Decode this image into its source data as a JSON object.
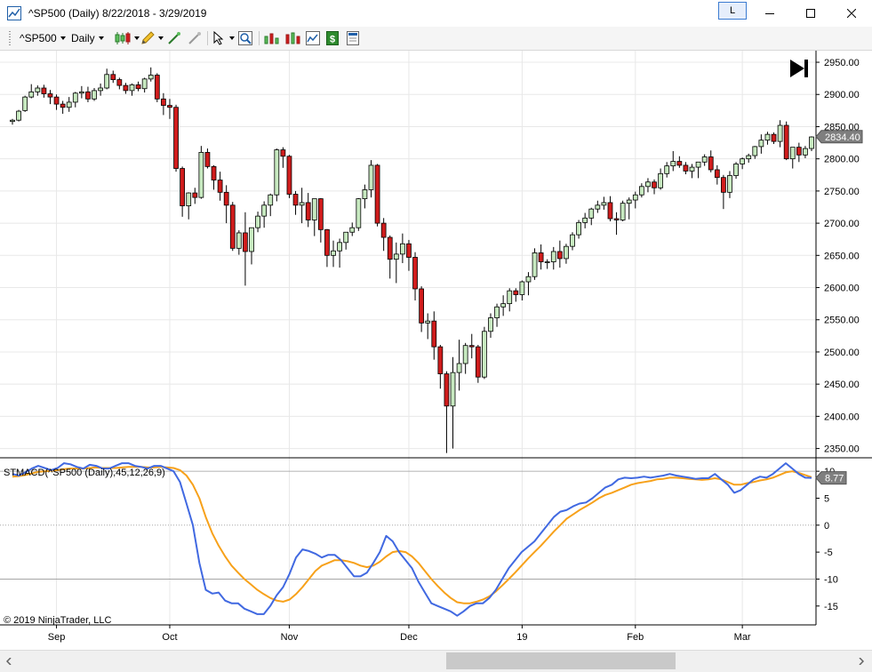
{
  "window": {
    "title": "^SP500 (Daily)  8/22/2018 - 3/29/2019",
    "link_label": "L"
  },
  "toolbar": {
    "instrument": "^SP500",
    "interval": "Daily"
  },
  "colors": {
    "candle_up": "#c7e9c0",
    "candle_down": "#d01c1c",
    "macd_line": "#4169e1",
    "signal_line": "#f7a11a",
    "grid": "#e8e8e8"
  },
  "chart_data": {
    "type": "candlestick",
    "price_axis": {
      "ticks": [
        "2950.00",
        "2900.00",
        "2850.00",
        "2800.00",
        "2750.00",
        "2700.00",
        "2650.00",
        "2600.00",
        "2550.00",
        "2500.00",
        "2450.00",
        "2400.00",
        "2350.00"
      ],
      "ylim": [
        2337,
        2968
      ],
      "last_price": "2834.40"
    },
    "time_axis": {
      "labels": [
        "Sep",
        "Oct",
        "Nov",
        "Dec",
        "19",
        "Feb",
        "Mar"
      ]
    },
    "candles": [
      [
        2858,
        2862,
        2853,
        2860
      ],
      [
        2860,
        2876,
        2858,
        2874
      ],
      [
        2875,
        2898,
        2873,
        2896
      ],
      [
        2896,
        2916,
        2894,
        2904
      ],
      [
        2904,
        2914,
        2898,
        2910
      ],
      [
        2910,
        2915,
        2895,
        2901
      ],
      [
        2901,
        2907,
        2885,
        2896
      ],
      [
        2896,
        2900,
        2876,
        2885
      ],
      [
        2885,
        2890,
        2870,
        2880
      ],
      [
        2880,
        2896,
        2873,
        2888
      ],
      [
        2888,
        2904,
        2880,
        2902
      ],
      [
        2902,
        2913,
        2894,
        2904
      ],
      [
        2904,
        2912,
        2888,
        2893
      ],
      [
        2893,
        2910,
        2890,
        2906
      ],
      [
        2906,
        2917,
        2898,
        2910
      ],
      [
        2910,
        2940,
        2908,
        2931
      ],
      [
        2931,
        2937,
        2918,
        2923
      ],
      [
        2923,
        2926,
        2908,
        2914
      ],
      [
        2914,
        2918,
        2901,
        2906
      ],
      [
        2906,
        2917,
        2898,
        2915
      ],
      [
        2915,
        2920,
        2905,
        2909
      ],
      [
        2909,
        2926,
        2903,
        2924
      ],
      [
        2924,
        2942,
        2920,
        2930
      ],
      [
        2930,
        2933,
        2888,
        2893
      ],
      [
        2893,
        2902,
        2868,
        2883
      ],
      [
        2883,
        2893,
        2862,
        2880
      ],
      [
        2880,
        2884,
        2780,
        2785
      ],
      [
        2785,
        2788,
        2710,
        2727
      ],
      [
        2727,
        2748,
        2706,
        2747
      ],
      [
        2747,
        2755,
        2730,
        2740
      ],
      [
        2740,
        2820,
        2738,
        2810
      ],
      [
        2810,
        2816,
        2785,
        2788
      ],
      [
        2788,
        2790,
        2752,
        2767
      ],
      [
        2767,
        2780,
        2735,
        2748
      ],
      [
        2748,
        2759,
        2700,
        2728
      ],
      [
        2728,
        2733,
        2657,
        2661
      ],
      [
        2661,
        2689,
        2651,
        2685
      ],
      [
        2685,
        2717,
        2603,
        2656
      ],
      [
        2656,
        2693,
        2636,
        2693
      ],
      [
        2693,
        2718,
        2686,
        2711
      ],
      [
        2711,
        2734,
        2693,
        2728
      ],
      [
        2728,
        2746,
        2711,
        2744
      ],
      [
        2744,
        2816,
        2734,
        2814
      ],
      [
        2814,
        2818,
        2786,
        2804
      ],
      [
        2804,
        2806,
        2739,
        2745
      ],
      [
        2745,
        2750,
        2713,
        2728
      ],
      [
        2728,
        2755,
        2700,
        2732
      ],
      [
        2732,
        2747,
        2694,
        2705
      ],
      [
        2705,
        2736,
        2680,
        2738
      ],
      [
        2738,
        2739,
        2670,
        2690
      ],
      [
        2690,
        2691,
        2632,
        2650
      ],
      [
        2650,
        2673,
        2632,
        2657
      ],
      [
        2657,
        2676,
        2631,
        2670
      ],
      [
        2670,
        2686,
        2659,
        2686
      ],
      [
        2686,
        2701,
        2680,
        2693
      ],
      [
        2693,
        2739,
        2688,
        2738
      ],
      [
        2738,
        2760,
        2723,
        2752
      ],
      [
        2752,
        2798,
        2740,
        2790
      ],
      [
        2790,
        2792,
        2695,
        2700
      ],
      [
        2700,
        2708,
        2657,
        2678
      ],
      [
        2678,
        2681,
        2614,
        2644
      ],
      [
        2644,
        2670,
        2607,
        2652
      ],
      [
        2652,
        2684,
        2638,
        2668
      ],
      [
        2668,
        2674,
        2626,
        2647
      ],
      [
        2647,
        2655,
        2580,
        2598
      ],
      [
        2598,
        2602,
        2531,
        2545
      ],
      [
        2545,
        2560,
        2520,
        2548
      ],
      [
        2548,
        2563,
        2488,
        2508
      ],
      [
        2508,
        2511,
        2443,
        2466
      ],
      [
        2466,
        2470,
        2343,
        2416
      ],
      [
        2416,
        2492,
        2350,
        2468
      ],
      [
        2468,
        2519,
        2440,
        2482
      ],
      [
        2482,
        2514,
        2466,
        2510
      ],
      [
        2510,
        2528,
        2490,
        2508
      ],
      [
        2508,
        2511,
        2452,
        2461
      ],
      [
        2461,
        2539,
        2458,
        2532
      ],
      [
        2532,
        2560,
        2522,
        2553
      ],
      [
        2553,
        2575,
        2539,
        2570
      ],
      [
        2570,
        2588,
        2556,
        2575
      ],
      [
        2575,
        2599,
        2563,
        2595
      ],
      [
        2595,
        2599,
        2578,
        2589
      ],
      [
        2589,
        2611,
        2580,
        2609
      ],
      [
        2609,
        2624,
        2588,
        2617
      ],
      [
        2617,
        2661,
        2612,
        2654
      ],
      [
        2654,
        2667,
        2628,
        2640
      ],
      [
        2640,
        2644,
        2629,
        2640
      ],
      [
        2640,
        2663,
        2628,
        2656
      ],
      [
        2656,
        2673,
        2631,
        2645
      ],
      [
        2645,
        2668,
        2637,
        2664
      ],
      [
        2664,
        2686,
        2658,
        2682
      ],
      [
        2682,
        2705,
        2676,
        2701
      ],
      [
        2701,
        2716,
        2692,
        2708
      ],
      [
        2708,
        2724,
        2697,
        2722
      ],
      [
        2722,
        2735,
        2716,
        2728
      ],
      [
        2728,
        2741,
        2721,
        2732
      ],
      [
        2732,
        2742,
        2703,
        2707
      ],
      [
        2707,
        2717,
        2682,
        2705
      ],
      [
        2705,
        2735,
        2703,
        2731
      ],
      [
        2731,
        2740,
        2706,
        2736
      ],
      [
        2736,
        2749,
        2723,
        2744
      ],
      [
        2744,
        2762,
        2740,
        2757
      ],
      [
        2757,
        2770,
        2748,
        2764
      ],
      [
        2764,
        2768,
        2745,
        2755
      ],
      [
        2755,
        2785,
        2752,
        2777
      ],
      [
        2777,
        2795,
        2771,
        2789
      ],
      [
        2789,
        2812,
        2781,
        2796
      ],
      [
        2796,
        2804,
        2786,
        2790
      ],
      [
        2790,
        2795,
        2776,
        2781
      ],
      [
        2781,
        2792,
        2770,
        2787
      ],
      [
        2787,
        2794,
        2770,
        2795
      ],
      [
        2795,
        2807,
        2789,
        2803
      ],
      [
        2803,
        2813,
        2779,
        2783
      ],
      [
        2783,
        2790,
        2760,
        2771
      ],
      [
        2771,
        2775,
        2722,
        2748
      ],
      [
        2748,
        2781,
        2739,
        2774
      ],
      [
        2774,
        2795,
        2769,
        2792
      ],
      [
        2792,
        2802,
        2784,
        2800
      ],
      [
        2800,
        2808,
        2794,
        2805
      ],
      [
        2805,
        2820,
        2800,
        2819
      ],
      [
        2819,
        2838,
        2808,
        2829
      ],
      [
        2829,
        2842,
        2822,
        2838
      ],
      [
        2838,
        2841,
        2823,
        2827
      ],
      [
        2827,
        2860,
        2818,
        2852
      ],
      [
        2852,
        2858,
        2798,
        2800
      ],
      [
        2800,
        2815,
        2785,
        2818
      ],
      [
        2818,
        2825,
        2795,
        2806
      ],
      [
        2806,
        2820,
        2801,
        2816
      ],
      [
        2816,
        2835,
        2812,
        2834
      ]
    ],
    "indicator": {
      "label": "STMACD(^SP500 (Daily),45,12,26,9)",
      "ticks": [
        "10",
        "5",
        "0",
        "-5",
        "-10",
        "-15"
      ],
      "ylim": [
        -18.5,
        12.5
      ],
      "last_value": "8.77",
      "macd": [
        9.5,
        9.2,
        9.8,
        10.5,
        11.0,
        10.6,
        10.2,
        10.6,
        11.5,
        11.3,
        10.8,
        10.5,
        11.2,
        11.0,
        10.5,
        10.5,
        11.0,
        11.5,
        11.5,
        11.0,
        10.8,
        10.5,
        11.0,
        11.0,
        10.5,
        10.0,
        8.0,
        4.0,
        0.0,
        -7.0,
        -12.0,
        -12.7,
        -12.5,
        -14.0,
        -14.5,
        -14.5,
        -15.5,
        -16.0,
        -16.5,
        -16.5,
        -15.0,
        -13.0,
        -11.5,
        -9.0,
        -6.0,
        -4.5,
        -4.8,
        -5.3,
        -6.0,
        -5.5,
        -5.5,
        -6.5,
        -8.0,
        -9.5,
        -9.5,
        -8.8,
        -7.0,
        -5.0,
        -2.0,
        -3.0,
        -5.0,
        -6.5,
        -8.0,
        -10.5,
        -12.5,
        -14.5,
        -15.0,
        -15.5,
        -16.0,
        -16.8,
        -16.0,
        -15.0,
        -14.5,
        -14.5,
        -13.5,
        -12.0,
        -10.0,
        -8.0,
        -6.5,
        -5.0,
        -4.0,
        -3.0,
        -1.5,
        0.0,
        1.5,
        2.5,
        2.8,
        3.5,
        4.0,
        4.2,
        5.0,
        6.0,
        7.0,
        7.5,
        8.5,
        8.8,
        8.7,
        8.8,
        9.0,
        8.8,
        9.0,
        9.2,
        9.5,
        9.2,
        9.0,
        8.8,
        8.6,
        8.7,
        8.7,
        9.5,
        8.5,
        7.5,
        6.0,
        6.5,
        7.5,
        8.5,
        9.0,
        8.8,
        9.5,
        10.5,
        11.5,
        10.5,
        9.5,
        8.8,
        8.77
      ],
      "signal": [
        9.0,
        9.1,
        9.3,
        9.6,
        9.9,
        10.0,
        10.1,
        10.2,
        10.4,
        10.5,
        10.5,
        10.5,
        10.6,
        10.7,
        10.6,
        10.6,
        10.6,
        10.7,
        10.8,
        10.8,
        10.8,
        10.7,
        10.7,
        10.8,
        10.7,
        10.6,
        10.2,
        9.2,
        7.5,
        5.0,
        1.5,
        -1.5,
        -3.8,
        -5.8,
        -7.5,
        -8.8,
        -10.0,
        -11.0,
        -12.0,
        -12.8,
        -13.5,
        -14.0,
        -14.2,
        -13.8,
        -12.8,
        -11.5,
        -10.0,
        -8.5,
        -7.5,
        -7.0,
        -6.5,
        -6.5,
        -6.7,
        -7.0,
        -7.5,
        -7.8,
        -7.5,
        -6.8,
        -5.8,
        -5.0,
        -4.8,
        -5.0,
        -5.8,
        -7.0,
        -8.5,
        -10.0,
        -11.3,
        -12.5,
        -13.5,
        -14.3,
        -14.5,
        -14.5,
        -14.2,
        -13.8,
        -13.2,
        -12.3,
        -11.2,
        -10.0,
        -8.8,
        -7.5,
        -6.2,
        -5.0,
        -3.8,
        -2.5,
        -1.2,
        0.0,
        1.2,
        2.0,
        2.8,
        3.5,
        4.2,
        5.0,
        5.6,
        6.0,
        6.5,
        7.0,
        7.5,
        7.8,
        8.0,
        8.2,
        8.5,
        8.6,
        8.8,
        8.8,
        8.7,
        8.6,
        8.5,
        8.4,
        8.5,
        8.7,
        8.5,
        8.0,
        7.5,
        7.5,
        7.8,
        8.0,
        8.3,
        8.5,
        8.8,
        9.3,
        9.8,
        10.0,
        9.7,
        9.3,
        8.9
      ]
    }
  },
  "copyright": "© 2019 NinjaTrader, LLC"
}
